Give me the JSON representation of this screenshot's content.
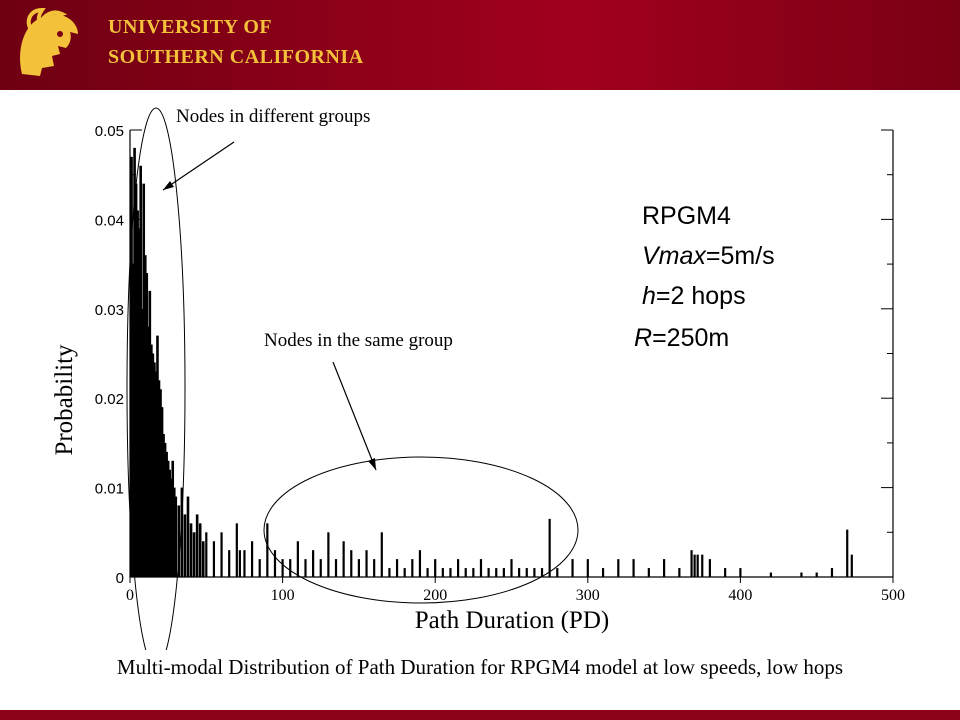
{
  "header": {
    "line1": "UNIVERSITY OF",
    "line2": "SOUTHERN CALIFORNIA",
    "logo_icon": "trojan-helmet-icon",
    "colors": {
      "cardinal": "#8c0018",
      "gold": "#f3c23a"
    }
  },
  "annotations": {
    "different_groups": "Nodes in different groups",
    "same_group": "Nodes in the same group"
  },
  "params": {
    "model": "RPGM4",
    "vmax_label": "Vmax",
    "vmax_value": "=5m/s",
    "h_label": "h",
    "h_value": "=2 hops",
    "r_label": "R",
    "r_value": "=250m"
  },
  "caption": "Multi-modal Distribution of Path Duration for RPGM4 model at low speeds, low hops",
  "chart_data": {
    "type": "bar",
    "xlabel": "Path Duration (PD)",
    "ylabel": "Probability",
    "xlim": [
      0,
      500
    ],
    "ylim": [
      0,
      0.05
    ],
    "xticks": [
      "0",
      "100",
      "200",
      "300",
      "400",
      "500"
    ],
    "yticks": [
      "0",
      "0.01",
      "0.02",
      "0.03",
      "0.04",
      "0.05"
    ],
    "grid": false,
    "series": [
      {
        "x": [
          1,
          2,
          3,
          4,
          5,
          6,
          7,
          8,
          9,
          10,
          11,
          12,
          13,
          14,
          15,
          16,
          17,
          18,
          19,
          20,
          21,
          22,
          23,
          24,
          25,
          26,
          27,
          28,
          29,
          30,
          32,
          34,
          36,
          38,
          40,
          42,
          44,
          46,
          48,
          50,
          55,
          60,
          65,
          70,
          72,
          75,
          80,
          85,
          90,
          95,
          100,
          105,
          110,
          115,
          120,
          125,
          130,
          135,
          140,
          145,
          150,
          155,
          160,
          165,
          170,
          175,
          180,
          185,
          190,
          195,
          200,
          205,
          210,
          215,
          220,
          225,
          230,
          235,
          240,
          245,
          250,
          255,
          260,
          265,
          270,
          275,
          280,
          290,
          300,
          310,
          320,
          330,
          340,
          350,
          360,
          368,
          370,
          372,
          375,
          380,
          390,
          400,
          420,
          440,
          450,
          460,
          470,
          473
        ],
        "y": [
          0.047,
          0.035,
          0.048,
          0.044,
          0.041,
          0.039,
          0.046,
          0.03,
          0.044,
          0.036,
          0.034,
          0.028,
          0.032,
          0.026,
          0.025,
          0.024,
          0.023,
          0.027,
          0.022,
          0.021,
          0.019,
          0.016,
          0.015,
          0.014,
          0.013,
          0.012,
          0.011,
          0.013,
          0.01,
          0.009,
          0.008,
          0.01,
          0.007,
          0.009,
          0.006,
          0.005,
          0.007,
          0.006,
          0.004,
          0.005,
          0.004,
          0.005,
          0.003,
          0.006,
          0.003,
          0.003,
          0.004,
          0.002,
          0.006,
          0.003,
          0.002,
          0.002,
          0.004,
          0.002,
          0.003,
          0.002,
          0.005,
          0.002,
          0.004,
          0.003,
          0.002,
          0.003,
          0.002,
          0.005,
          0.001,
          0.002,
          0.001,
          0.002,
          0.003,
          0.001,
          0.002,
          0.001,
          0.001,
          0.002,
          0.001,
          0.001,
          0.002,
          0.001,
          0.001,
          0.001,
          0.002,
          0.001,
          0.001,
          0.001,
          0.001,
          0.0065,
          0.001,
          0.002,
          0.002,
          0.001,
          0.002,
          0.002,
          0.001,
          0.002,
          0.001,
          0.003,
          0.0025,
          0.0025,
          0.0025,
          0.002,
          0.001,
          0.001,
          0.0005,
          0.0005,
          0.0005,
          0.001,
          0.0053,
          0.0025
        ]
      }
    ]
  }
}
